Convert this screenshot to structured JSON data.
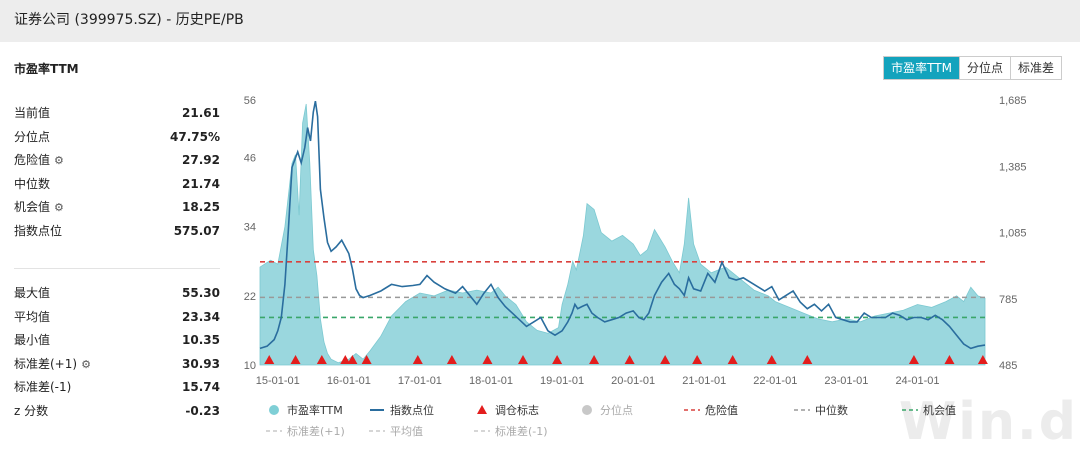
{
  "page": {
    "title": "证券公司 (399975.SZ) - 历史PE/PB"
  },
  "header": {
    "subtitle": "市盈率TTM"
  },
  "tabs": [
    {
      "label": "市盈率TTM",
      "active": true
    },
    {
      "label": "分位点",
      "active": false
    },
    {
      "label": "标准差",
      "active": false
    }
  ],
  "stats": [
    {
      "label": "当前值",
      "value": "21.61",
      "icon": null
    },
    {
      "label": "分位点",
      "value": "47.75%",
      "icon": null
    },
    {
      "label": "危险值",
      "value": "27.92",
      "icon": "gear-icon"
    },
    {
      "label": "中位数",
      "value": "21.74",
      "icon": null
    },
    {
      "label": "机会值",
      "value": "18.25",
      "icon": "gear-icon"
    },
    {
      "label": "指数点位",
      "value": "575.07",
      "icon": null
    }
  ],
  "stats2": [
    {
      "label": "最大值",
      "value": "55.30",
      "icon": null
    },
    {
      "label": "平均值",
      "value": "23.34",
      "icon": null
    },
    {
      "label": "最小值",
      "value": "10.35",
      "icon": null
    },
    {
      "label": "标准差(+1)",
      "value": "30.93",
      "icon": "gear-icon"
    },
    {
      "label": "标准差(-1)",
      "value": "15.74",
      "icon": null
    },
    {
      "label": "z 分数",
      "value": "-0.23",
      "icon": null
    }
  ],
  "watermark": "Win.d",
  "colors": {
    "accent": "#13a3bd",
    "area": "#8fd3da",
    "index_line": "#2a6d9e",
    "danger": "#d9413d",
    "median": "#999999",
    "opportunity": "#3aa66a",
    "marker": "#e31d1d"
  },
  "chart_data": {
    "type": "area",
    "x_ticks": [
      "15-01-01",
      "16-01-01",
      "17-01-01",
      "18-01-01",
      "19-01-01",
      "20-01-01",
      "21-01-01",
      "22-01-01",
      "23-01-01",
      "24-01-01"
    ],
    "x_range": [
      2014.75,
      2024.95
    ],
    "y_left_ticks": [
      "56",
      "46",
      "34",
      "22",
      "10"
    ],
    "y_left_range": [
      10,
      56
    ],
    "y_right_ticks": [
      "1,685",
      "1,385",
      "1,085",
      "785",
      "485"
    ],
    "y_right_range": [
      485,
      1685
    ],
    "reference_lines": {
      "danger": 27.92,
      "median": 21.74,
      "opportunity": 18.25
    },
    "series": [
      {
        "name": "市盈率TTM",
        "axis": "left",
        "kind": "area",
        "x": [
          2014.75,
          2014.9,
          2015.0,
          2015.1,
          2015.2,
          2015.25,
          2015.3,
          2015.35,
          2015.4,
          2015.45,
          2015.5,
          2015.55,
          2015.6,
          2015.65,
          2015.7,
          2015.75,
          2015.85,
          2016.0,
          2016.1,
          2016.2,
          2016.3,
          2016.45,
          2016.6,
          2016.8,
          2017.0,
          2017.2,
          2017.4,
          2017.6,
          2017.8,
          2018.0,
          2018.1,
          2018.2,
          2018.35,
          2018.5,
          2018.65,
          2018.8,
          2018.95,
          2019.0,
          2019.08,
          2019.15,
          2019.2,
          2019.25,
          2019.3,
          2019.35,
          2019.45,
          2019.55,
          2019.7,
          2019.85,
          2020.0,
          2020.1,
          2020.2,
          2020.3,
          2020.45,
          2020.55,
          2020.65,
          2020.72,
          2020.78,
          2020.85,
          2020.95,
          2021.1,
          2021.3,
          2021.5,
          2021.7,
          2021.9,
          2022.0,
          2022.2,
          2022.4,
          2022.6,
          2022.8,
          2023.0,
          2023.2,
          2023.4,
          2023.6,
          2023.8,
          2024.0,
          2024.2,
          2024.4,
          2024.55,
          2024.65,
          2024.75,
          2024.85,
          2024.95
        ],
        "values": [
          27.0,
          28.2,
          27.5,
          34.0,
          45.0,
          46.5,
          36.0,
          52.0,
          55.3,
          45.0,
          30.0,
          25.5,
          18.0,
          14.0,
          12.0,
          11.0,
          10.4,
          11.0,
          12.0,
          11.0,
          12.5,
          15.0,
          18.5,
          21.0,
          22.5,
          22.0,
          23.0,
          22.5,
          23.0,
          22.5,
          23.5,
          22.0,
          20.5,
          17.5,
          16.0,
          15.5,
          16.5,
          20.5,
          24.0,
          28.0,
          26.5,
          29.5,
          32.5,
          38.0,
          37.0,
          33.0,
          31.5,
          32.5,
          31.0,
          29.0,
          30.0,
          33.5,
          30.5,
          28.0,
          26.0,
          31.0,
          39.0,
          31.0,
          27.5,
          26.0,
          27.0,
          25.0,
          23.0,
          22.0,
          21.0,
          20.0,
          19.0,
          18.0,
          17.5,
          18.0,
          17.5,
          18.5,
          19.0,
          19.5,
          20.5,
          20.0,
          21.0,
          22.0,
          21.0,
          23.5,
          22.0,
          21.6
        ]
      },
      {
        "name": "指数点位",
        "axis": "right",
        "kind": "line",
        "x": [
          2014.75,
          2014.85,
          2014.95,
          2015.0,
          2015.05,
          2015.1,
          2015.15,
          2015.2,
          2015.28,
          2015.33,
          2015.38,
          2015.42,
          2015.46,
          2015.5,
          2015.53,
          2015.56,
          2015.6,
          2015.65,
          2015.7,
          2015.75,
          2015.82,
          2015.9,
          2016.0,
          2016.05,
          2016.1,
          2016.15,
          2016.2,
          2016.3,
          2016.45,
          2016.6,
          2016.75,
          2016.9,
          2017.0,
          2017.1,
          2017.2,
          2017.35,
          2017.5,
          2017.6,
          2017.7,
          2017.8,
          2017.9,
          2018.0,
          2018.1,
          2018.2,
          2018.3,
          2018.4,
          2018.5,
          2018.6,
          2018.7,
          2018.8,
          2018.9,
          2019.0,
          2019.08,
          2019.14,
          2019.18,
          2019.22,
          2019.28,
          2019.35,
          2019.42,
          2019.5,
          2019.6,
          2019.7,
          2019.8,
          2019.9,
          2020.0,
          2020.08,
          2020.15,
          2020.22,
          2020.3,
          2020.4,
          2020.5,
          2020.58,
          2020.65,
          2020.72,
          2020.78,
          2020.85,
          2020.95,
          2021.05,
          2021.15,
          2021.25,
          2021.35,
          2021.45,
          2021.55,
          2021.65,
          2021.75,
          2021.85,
          2021.95,
          2022.05,
          2022.15,
          2022.25,
          2022.35,
          2022.45,
          2022.55,
          2022.65,
          2022.75,
          2022.85,
          2022.95,
          2023.05,
          2023.15,
          2023.25,
          2023.35,
          2023.45,
          2023.55,
          2023.65,
          2023.75,
          2023.85,
          2023.95,
          2024.05,
          2024.15,
          2024.25,
          2024.35,
          2024.45,
          2024.55,
          2024.65,
          2024.75,
          2024.85,
          2024.95
        ],
        "values": [
          560,
          570,
          600,
          640,
          700,
          850,
          1100,
          1380,
          1450,
          1400,
          1470,
          1560,
          1500,
          1630,
          1680,
          1610,
          1280,
          1150,
          1040,
          1000,
          1020,
          1050,
          990,
          920,
          830,
          800,
          790,
          800,
          820,
          850,
          840,
          845,
          850,
          890,
          860,
          830,
          810,
          840,
          800,
          760,
          810,
          850,
          790,
          750,
          720,
          690,
          660,
          680,
          700,
          640,
          620,
          640,
          680,
          720,
          760,
          740,
          750,
          760,
          720,
          700,
          680,
          690,
          700,
          720,
          730,
          700,
          690,
          720,
          800,
          860,
          900,
          850,
          830,
          800,
          880,
          830,
          820,
          900,
          860,
          950,
          880,
          870,
          880,
          860,
          840,
          820,
          840,
          780,
          800,
          820,
          770,
          740,
          760,
          730,
          760,
          700,
          690,
          680,
          680,
          720,
          700,
          700,
          700,
          720,
          710,
          690,
          700,
          700,
          690,
          710,
          690,
          660,
          620,
          580,
          560,
          570,
          575
        ]
      }
    ],
    "rebalance_markers": [
      2014.88,
      2015.25,
      2015.62,
      2015.95,
      2016.05,
      2016.25,
      2016.97,
      2017.45,
      2017.95,
      2018.45,
      2018.93,
      2019.45,
      2019.95,
      2020.45,
      2020.9,
      2021.4,
      2021.95,
      2022.45,
      2023.95,
      2024.45,
      2024.92
    ],
    "legend": [
      {
        "label": "市盈率TTM",
        "kind": "dot",
        "color": "#7fcfd6"
      },
      {
        "label": "指数点位",
        "kind": "line",
        "color": "#2a6d9e"
      },
      {
        "label": "调仓标志",
        "kind": "triangle",
        "color": "#e31d1d"
      },
      {
        "label": "分位点",
        "kind": "dot",
        "color": "#c8c8c8"
      },
      {
        "label": "危险值",
        "kind": "dash",
        "color": "#d9413d"
      },
      {
        "label": "中位数",
        "kind": "dash",
        "color": "#999999"
      },
      {
        "label": "机会值",
        "kind": "dash",
        "color": "#3aa66a"
      },
      {
        "label": "标准差(+1)",
        "kind": "dash",
        "color": "#c8c8c8"
      },
      {
        "label": "平均值",
        "kind": "dash",
        "color": "#c8c8c8"
      },
      {
        "label": "标准差(-1)",
        "kind": "dash",
        "color": "#c8c8c8"
      }
    ],
    "legend_placement": "bottom"
  }
}
